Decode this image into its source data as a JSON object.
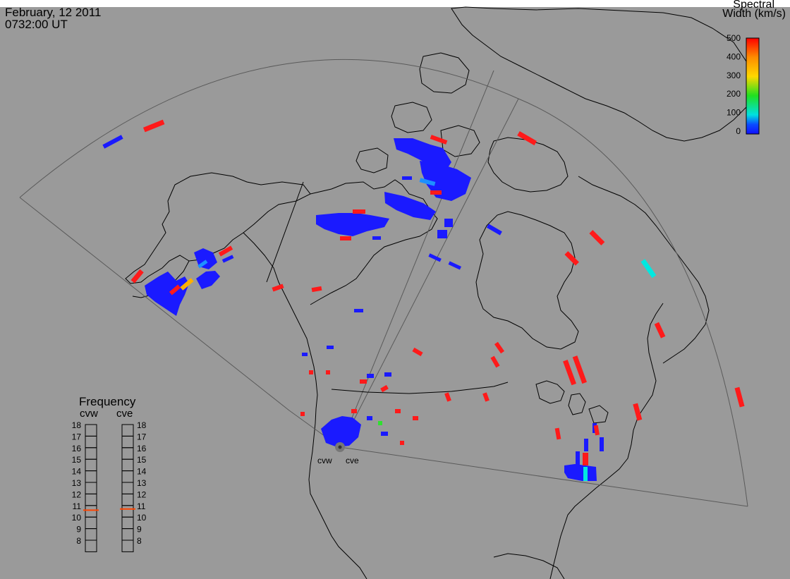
{
  "header": {
    "date": "February, 12 2011",
    "time": "0732:00 UT"
  },
  "colorbar": {
    "title_line1": "Spectral",
    "title_line2": "Width (km/s)",
    "ticks": [
      "500",
      "400",
      "300",
      "200",
      "100",
      "0"
    ],
    "colors": [
      "#ff0000",
      "#ff8c00",
      "#ffd800",
      "#20e020",
      "#00e0e0",
      "#0a4cff",
      "#1010ff"
    ]
  },
  "stations": [
    {
      "name": "cvw"
    },
    {
      "name": "cve"
    }
  ],
  "frequency": {
    "title": "Frequency",
    "left_label": "cvw",
    "right_label": "cve",
    "scale": [
      "18",
      "17",
      "16",
      "15",
      "14",
      "13",
      "12",
      "11",
      "10",
      "9",
      "8"
    ],
    "cvw_value_mhz": 10.6,
    "cve_value_mhz": 10.7,
    "marker_color": "#ff4500"
  }
}
